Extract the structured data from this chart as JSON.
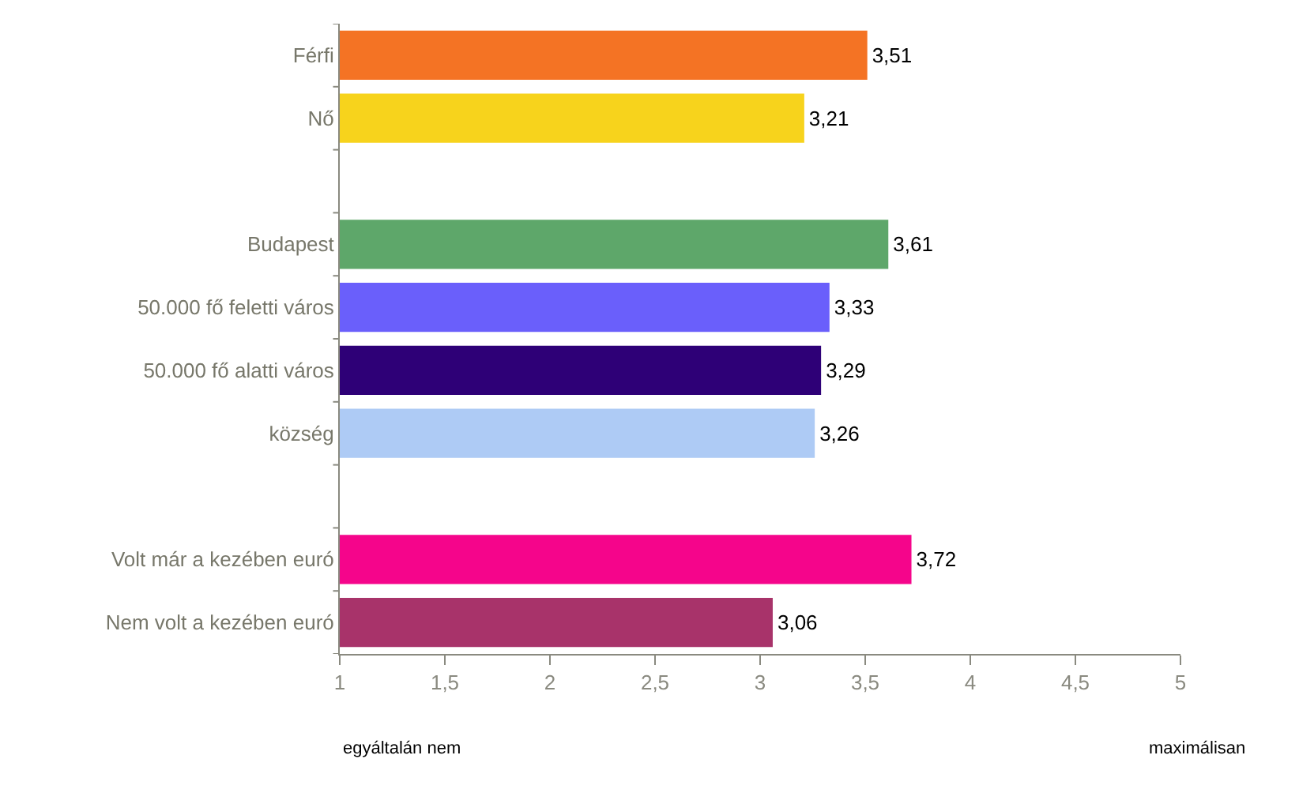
{
  "chart_data": {
    "type": "bar",
    "orientation": "horizontal",
    "categories": [
      "Férfi",
      "Nő",
      null,
      "Budapest",
      "50.000 fő feletti város",
      "50.000 fő alatti város",
      "község",
      null,
      "Volt már a kezében euró",
      "Nem volt a kezében euró"
    ],
    "values": [
      3.51,
      3.21,
      null,
      3.61,
      3.33,
      3.29,
      3.26,
      null,
      3.72,
      3.06
    ],
    "value_labels": [
      "3,51",
      "3,21",
      null,
      "3,61",
      "3,33",
      "3,29",
      "3,26",
      null,
      "3,72",
      "3,06"
    ],
    "colors": [
      "#f47324",
      "#f7d31c",
      null,
      "#5ea76a",
      "#6a5ffb",
      "#2e0077",
      "#aecbf5",
      null,
      "#f5058b",
      "#a8336a"
    ],
    "xlim": [
      1,
      5
    ],
    "xticks": [
      1,
      {
        "value": 1.5,
        "label": "1,5"
      },
      2,
      {
        "value": 2.5,
        "label": "2,5"
      },
      3,
      {
        "value": 3.5,
        "label": "3,5"
      },
      4,
      {
        "value": 4.5,
        "label": "4,5"
      },
      5
    ],
    "legend": false,
    "annotations": [
      "egyáltalán nem",
      "maximálisan"
    ]
  }
}
